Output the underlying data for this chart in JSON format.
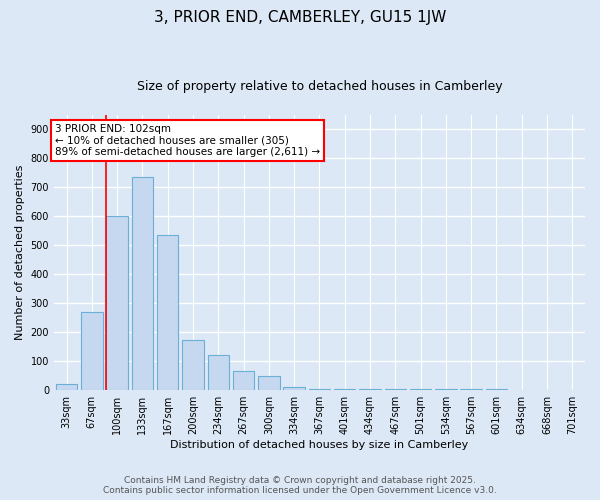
{
  "title": "3, PRIOR END, CAMBERLEY, GU15 1JW",
  "subtitle": "Size of property relative to detached houses in Camberley",
  "xlabel": "Distribution of detached houses by size in Camberley",
  "ylabel": "Number of detached properties",
  "categories": [
    "33sqm",
    "67sqm",
    "100sqm",
    "133sqm",
    "167sqm",
    "200sqm",
    "234sqm",
    "267sqm",
    "300sqm",
    "334sqm",
    "367sqm",
    "401sqm",
    "434sqm",
    "467sqm",
    "501sqm",
    "534sqm",
    "567sqm",
    "601sqm",
    "634sqm",
    "668sqm",
    "701sqm"
  ],
  "values": [
    20,
    270,
    600,
    735,
    535,
    175,
    120,
    67,
    50,
    12,
    5,
    5,
    5,
    5,
    5,
    5,
    5,
    5,
    0,
    0,
    0
  ],
  "bar_color": "#c5d8f0",
  "bar_edge_color": "#6baed6",
  "red_line_index": 2,
  "annotation_line1": "3 PRIOR END: 102sqm",
  "annotation_line2": "← 10% of detached houses are smaller (305)",
  "annotation_line3": "89% of semi-detached houses are larger (2,611) →",
  "annotation_box_facecolor": "white",
  "annotation_box_edgecolor": "red",
  "ylim": [
    0,
    950
  ],
  "yticks": [
    0,
    100,
    200,
    300,
    400,
    500,
    600,
    700,
    800,
    900
  ],
  "bg_color": "#dce8f5",
  "plot_bg_color": "#dce8f5",
  "grid_color": "white",
  "footer_line1": "Contains HM Land Registry data © Crown copyright and database right 2025.",
  "footer_line2": "Contains public sector information licensed under the Open Government Licence v3.0.",
  "title_fontsize": 11,
  "subtitle_fontsize": 9,
  "tick_fontsize": 7,
  "axis_label_fontsize": 8,
  "footer_fontsize": 6.5,
  "annotation_fontsize": 7.5
}
